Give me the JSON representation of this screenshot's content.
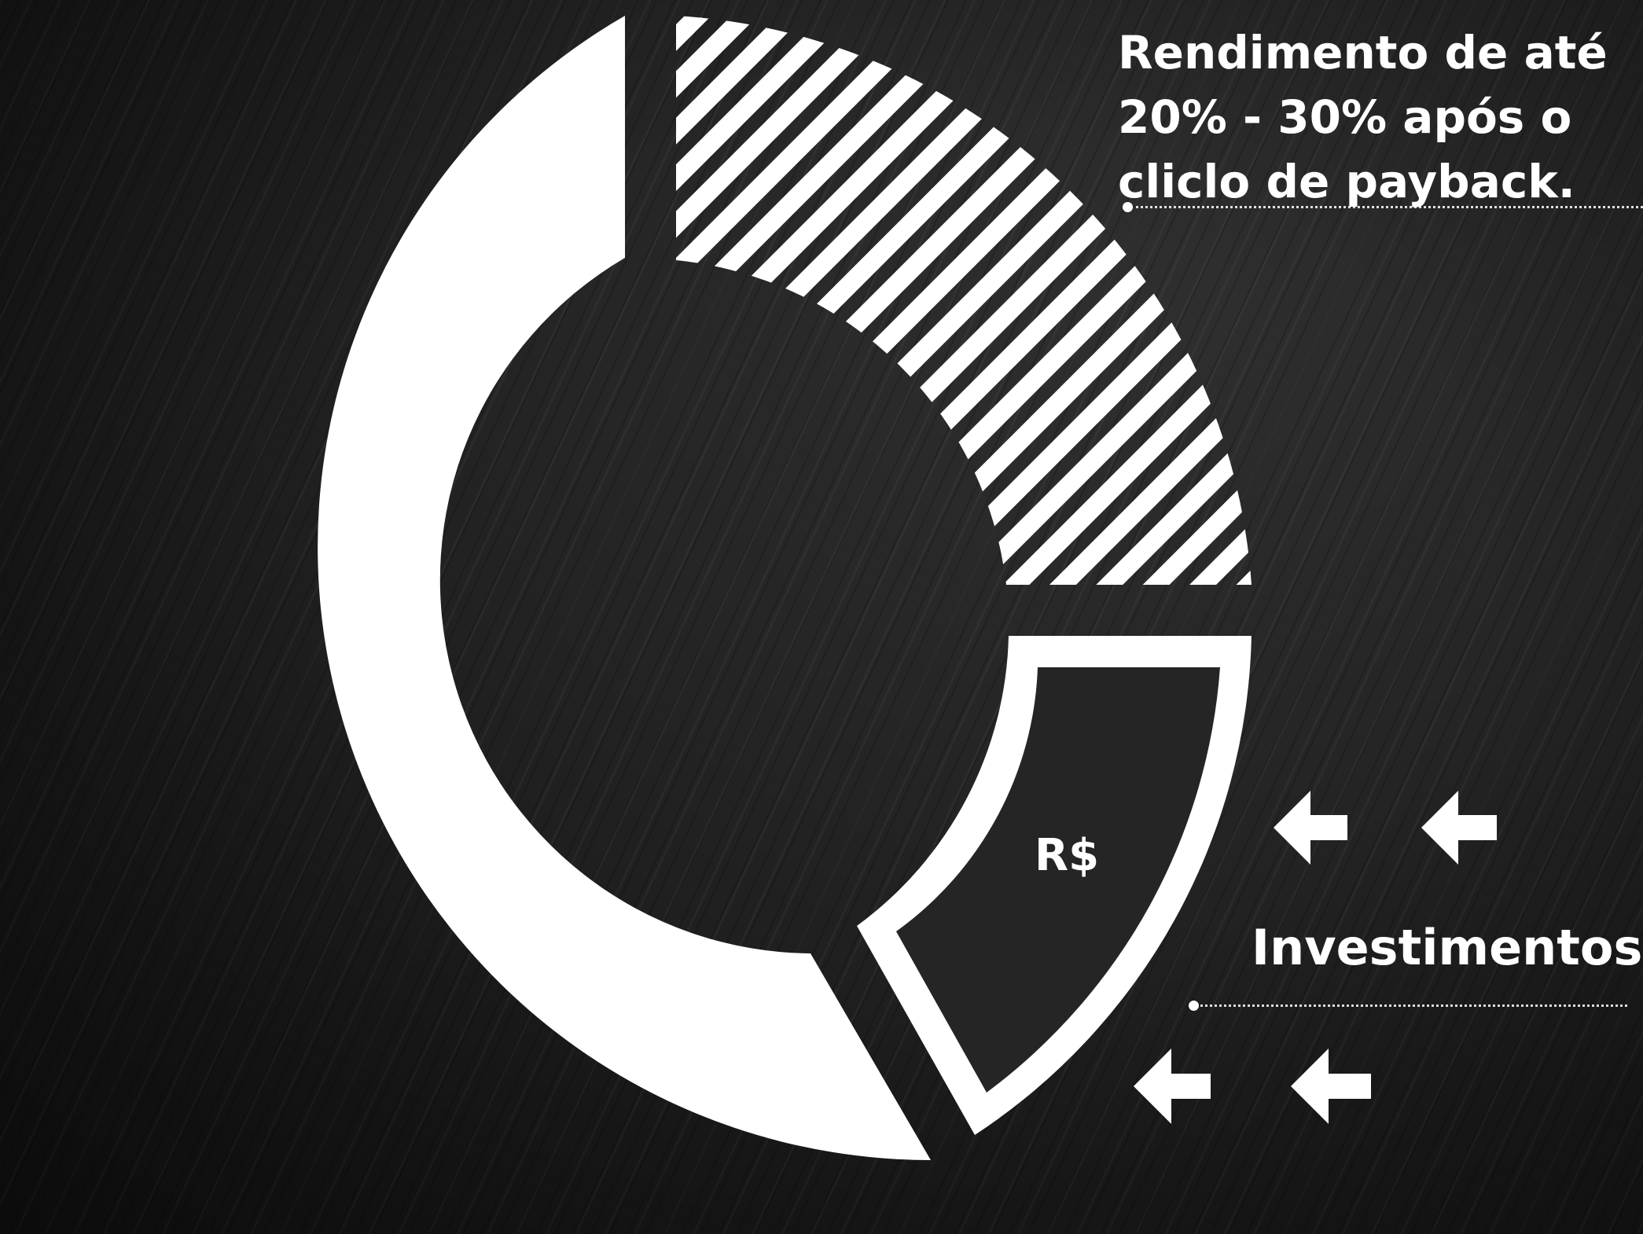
{
  "headline": {
    "line1": "Rendimento de até",
    "line2": "20% - 30% após o",
    "line3": "cliclo de payback."
  },
  "investment_label": "Investimentos",
  "currency_symbol": "R$",
  "colors": {
    "foreground": "#ffffff",
    "background": "#1c1c1c"
  },
  "icons": [
    "arrow-left-icon",
    "arrow-left-icon",
    "arrow-left-icon",
    "arrow-left-icon"
  ]
}
